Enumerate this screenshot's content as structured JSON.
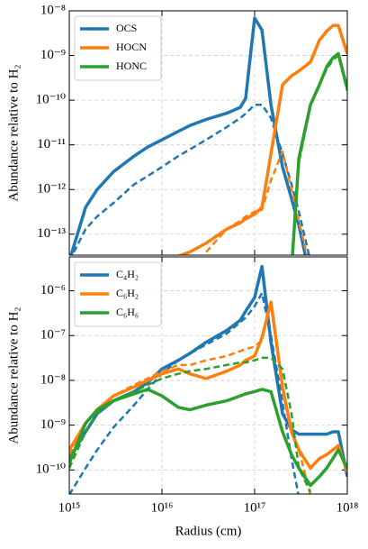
{
  "chart_data": [
    {
      "type": "line",
      "xscale": "log",
      "yscale": "log",
      "grid": true,
      "legend": "upper left",
      "ylabel": "Abundance relative to H₂",
      "x": [
        1000000000000000.0,
        1500000000000000.0,
        2000000000000000.0,
        3000000000000000.0,
        5000000000000000.0,
        7000000000000000.0,
        1e+16,
        1.5e+16,
        2e+16,
        3e+16,
        5e+16,
        7e+16,
        8e+16,
        1e+17,
        1.2e+17,
        1.5e+17,
        2e+17,
        2.5e+17,
        3e+17,
        4e+17,
        5e+17,
        6e+17,
        7e+17,
        8e+17,
        1e+18
      ],
      "xlim": [
        1000000000000000.0,
        1e+18
      ],
      "xticks": [
        1000000000000000.0,
        1e+16,
        1e+17,
        1e+18
      ],
      "ylim": [
        3.4e-14,
        1e-08
      ],
      "yticks": [
        {
          "value": 1e-13,
          "label": "10⁻¹³"
        },
        {
          "value": 1e-12,
          "label": "10⁻¹²"
        },
        {
          "value": 1e-11,
          "label": "10⁻¹¹"
        },
        {
          "value": 1e-10,
          "label": "10⁻¹⁰"
        },
        {
          "value": 1e-09,
          "label": "10⁻⁹"
        },
        {
          "value": 1e-08,
          "label": "10⁻⁸"
        }
      ],
      "series": [
        {
          "name": "OCS",
          "color": "#1f77b4",
          "values": [
            2.5e-14,
            4e-13,
            1e-12,
            2.5e-12,
            5.6e-12,
            8.9e-12,
            1.3e-11,
            2e-11,
            2.7e-11,
            3.7e-11,
            5.1e-11,
            6.9e-11,
            1.1e-10,
            6.9e-09,
            3.7e-09,
            7.9e-11,
            3.2e-12,
            6.3e-13,
            1.6e-13,
            1e-14,
            null,
            null,
            null,
            null,
            null
          ],
          "values_dashed": [
            2.5e-14,
            1.3e-13,
            2.5e-13,
            5e-13,
            1.3e-12,
            2e-12,
            3.2e-12,
            5.6e-12,
            7.9e-12,
            1.3e-11,
            2.5e-11,
            4e-11,
            5e-11,
            7.9e-11,
            7.9e-11,
            4e-11,
            6.3e-12,
            1.3e-12,
            3.2e-13,
            2.5e-14,
            null,
            null,
            null,
            null,
            null
          ]
        },
        {
          "name": "HOCN",
          "color": "#ff7f0e",
          "values": [
            null,
            null,
            null,
            null,
            null,
            null,
            2.5e-14,
            3.2e-14,
            4e-14,
            6.3e-14,
            1.3e-13,
            1.8e-13,
            2.2e-13,
            2.8e-13,
            4e-13,
            6.3e-12,
            2.2e-10,
            3.5e-10,
            4.5e-10,
            7.1e-10,
            2.2e-09,
            3.5e-09,
            4.7e-09,
            4.7e-09,
            1.1e-09
          ],
          "values_dashed": [
            null,
            null,
            null,
            null,
            null,
            null,
            null,
            null,
            null,
            4e-14,
            1.3e-13,
            2e-13,
            2.5e-13,
            3.2e-13,
            3.5e-13,
            1.6e-12,
            7.1e-12,
            1e-12,
            2e-13,
            1.6e-14,
            null,
            null,
            null,
            null,
            null
          ]
        },
        {
          "name": "HONC",
          "color": "#2ca02c",
          "values": [
            null,
            null,
            null,
            null,
            null,
            null,
            null,
            null,
            null,
            null,
            null,
            null,
            null,
            null,
            null,
            null,
            null,
            1.6e-14,
            5e-12,
            7.9e-11,
            2.2e-10,
            5.6e-10,
            8.9e-10,
            1.1e-09,
            1.8e-10
          ],
          "values_dashed": [
            null,
            null,
            null,
            null,
            null,
            null,
            null,
            null,
            null,
            null,
            null,
            null,
            null,
            null,
            null,
            null,
            null,
            1.6e-14,
            4e-12,
            7.1e-11,
            2.2e-10,
            5e-10,
            7.9e-10,
            1e-09,
            1.6e-10
          ]
        }
      ]
    },
    {
      "type": "line",
      "xscale": "log",
      "yscale": "log",
      "grid": true,
      "legend": "upper left",
      "ylabel": "Abundance relative to H₂",
      "xlabel": "Radius (cm)",
      "x": [
        1000000000000000.0,
        1500000000000000.0,
        2000000000000000.0,
        3000000000000000.0,
        5000000000000000.0,
        7000000000000000.0,
        1e+16,
        1.5e+16,
        2e+16,
        3e+16,
        5e+16,
        7e+16,
        8e+16,
        1e+17,
        1.2e+17,
        1.5e+17,
        2e+17,
        2.5e+17,
        3e+17,
        4e+17,
        5e+17,
        6e+17,
        7e+17,
        8e+17,
        1e+18
      ],
      "xlim": [
        1000000000000000.0,
        1e+18
      ],
      "xticks": [
        {
          "value": 1000000000000000.0,
          "label": "10¹⁵"
        },
        {
          "value": 1e+16,
          "label": "10¹⁶"
        },
        {
          "value": 1e+17,
          "label": "10¹⁷"
        },
        {
          "value": 1e+18,
          "label": "10¹⁸"
        }
      ],
      "ylim": [
        2.9e-11,
        5.7e-06
      ],
      "yticks": [
        {
          "value": 1e-10,
          "label": "10⁻¹⁰"
        },
        {
          "value": 1e-09,
          "label": "10⁻⁹"
        },
        {
          "value": 1e-08,
          "label": "10⁻⁸"
        },
        {
          "value": 1e-07,
          "label": "10⁻⁷"
        },
        {
          "value": 1e-06,
          "label": "10⁻⁶"
        }
      ],
      "series": [
        {
          "name": "C₄H₂",
          "color": "#1f77b4",
          "values": [
            1.8e-10,
            7.1e-10,
            1.8e-09,
            3.5e-09,
            5.6e-09,
            8.9e-09,
            1.8e-08,
            2.8e-08,
            4e-08,
            7.1e-08,
            1.3e-07,
            2.2e-07,
            3.5e-07,
            7.1e-07,
            3.5e-06,
            7.1e-08,
            1.8e-09,
            7.9e-10,
            6.3e-10,
            6.3e-10,
            6.3e-10,
            6.3e-10,
            7.1e-10,
            7.1e-10,
            7.1e-11
          ],
          "values_dashed": [
            2.8e-11,
            1.1e-10,
            2.8e-10,
            8.9e-10,
            2.8e-09,
            6.3e-09,
            1.4e-08,
            2.8e-08,
            4e-08,
            6.3e-08,
            1.1e-07,
            2e-07,
            2.5e-07,
            4.5e-07,
            8.9e-07,
            1e-07,
            3.2e-09,
            1.8e-10,
            2.5e-11,
            null,
            null,
            null,
            null,
            null,
            null
          ]
        },
        {
          "name": "C₆H₂",
          "color": "#ff7f0e",
          "values": [
            2.8e-10,
            1.1e-09,
            2.2e-09,
            4.5e-09,
            7.1e-09,
            1e-08,
            1.4e-08,
            1.8e-08,
            1.4e-08,
            1.1e-08,
            1.6e-08,
            2.2e-08,
            2.8e-08,
            3.5e-08,
            8.9e-08,
            5.6e-07,
            7.1e-09,
            7.1e-10,
            2.8e-10,
            1.1e-10,
            1.8e-10,
            2.2e-10,
            2.8e-10,
            3.5e-10,
            8.9e-11
          ],
          "values_dashed": [
            2.2e-10,
            1.1e-09,
            2.2e-09,
            4.5e-09,
            7.9e-09,
            1.1e-08,
            1.6e-08,
            2.2e-08,
            2.2e-08,
            2.8e-08,
            3.5e-08,
            4.5e-08,
            5e-08,
            5.6e-08,
            7.9e-08,
            5.6e-07,
            7.1e-09,
            7.1e-10,
            2.8e-10,
            2.8e-11,
            null,
            null,
            null,
            null,
            null
          ]
        },
        {
          "name": "C₆H₆",
          "color": "#2ca02c",
          "values": [
            1.4e-10,
            1.1e-09,
            2.2e-09,
            3.5e-09,
            5e-09,
            6.3e-09,
            4.5e-09,
            2.5e-09,
            2.2e-09,
            2.8e-09,
            3.5e-09,
            4.5e-09,
            5e-09,
            5.6e-09,
            6.3e-09,
            5.6e-09,
            7.1e-10,
            2.2e-10,
            1.1e-10,
            4.5e-11,
            7.1e-11,
            1.1e-10,
            1.8e-10,
            2.8e-10,
            1.1e-10
          ],
          "values_dashed": [
            1.1e-10,
            7.1e-10,
            1.8e-09,
            3.5e-09,
            5.6e-09,
            7.9e-09,
            1.1e-08,
            1.4e-08,
            1.6e-08,
            1.8e-08,
            2.2e-08,
            2.5e-08,
            2.5e-08,
            2.8e-08,
            3.2e-08,
            3.2e-08,
            1.8e-08,
            1.8e-09,
            1.1e-10,
            3.2e-11,
            null,
            null,
            null,
            null,
            null
          ]
        }
      ]
    }
  ]
}
